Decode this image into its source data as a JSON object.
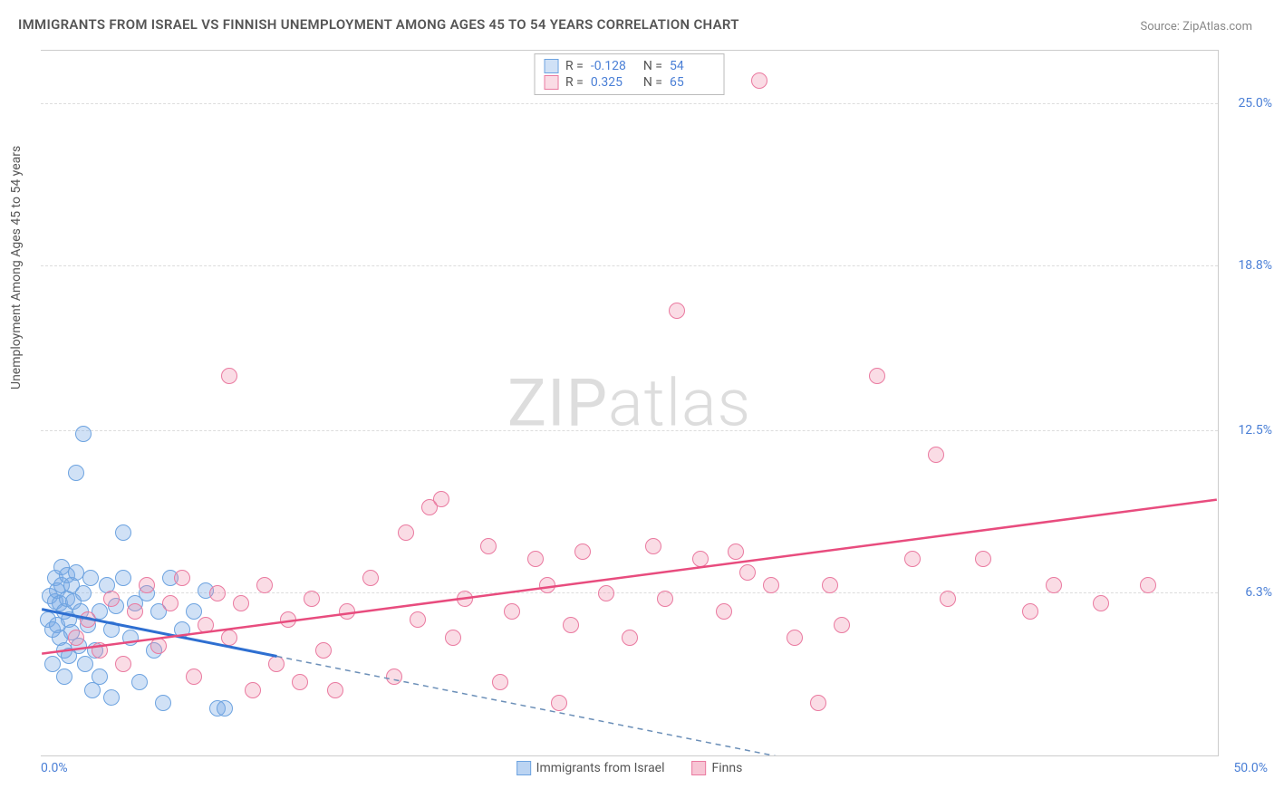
{
  "title": "IMMIGRANTS FROM ISRAEL VS FINNISH UNEMPLOYMENT AMONG AGES 45 TO 54 YEARS CORRELATION CHART",
  "source": "Source: ZipAtlas.com",
  "watermark_a": "ZIP",
  "watermark_b": "atlas",
  "chart": {
    "type": "scatter",
    "ylabel": "Unemployment Among Ages 45 to 54 years",
    "xlim": [
      0,
      50
    ],
    "ylim": [
      0,
      27
    ],
    "xtick_labels": {
      "min": "0.0%",
      "max": "50.0%"
    },
    "ytick_labels": [
      "6.3%",
      "12.5%",
      "18.8%",
      "25.0%"
    ],
    "ytick_values": [
      6.3,
      12.5,
      18.8,
      25.0
    ],
    "grid_color": "#dddddd",
    "border_color": "#cccccc",
    "background_color": "#ffffff",
    "tick_text_color": "#4a7fd6",
    "label_text_color": "#555555",
    "title_color": "#555555",
    "title_fontsize": 15,
    "label_fontsize": 14,
    "tick_fontsize": 14,
    "point_radius": 9,
    "series": [
      {
        "name": "Immigrants from Israel",
        "short": "israel",
        "fill": "rgba(120,170,230,0.35)",
        "stroke": "#6da3e0",
        "r_label": "R =",
        "r_value": "-0.128",
        "n_label": "N =",
        "n_value": "54",
        "trend": {
          "solid": {
            "x1": 0,
            "y1": 5.6,
            "x2": 10,
            "y2": 3.8
          },
          "dashed": {
            "x1": 10,
            "y1": 3.8,
            "x2": 35,
            "y2": -0.7
          },
          "solid_color": "#2e6fd1",
          "dash_color": "#6b8fb8",
          "solid_width": 3,
          "dash_width": 1.5
        },
        "points": [
          [
            0.3,
            5.2
          ],
          [
            0.4,
            6.1
          ],
          [
            0.5,
            4.8
          ],
          [
            0.6,
            5.9
          ],
          [
            0.6,
            6.8
          ],
          [
            0.7,
            5.0
          ],
          [
            0.7,
            6.3
          ],
          [
            0.8,
            4.5
          ],
          [
            0.8,
            5.8
          ],
          [
            0.9,
            6.5
          ],
          [
            0.9,
            7.2
          ],
          [
            1.0,
            4.0
          ],
          [
            1.0,
            5.5
          ],
          [
            1.1,
            6.0
          ],
          [
            1.1,
            6.9
          ],
          [
            1.2,
            3.8
          ],
          [
            1.2,
            5.2
          ],
          [
            1.3,
            6.5
          ],
          [
            1.3,
            4.7
          ],
          [
            1.4,
            5.9
          ],
          [
            1.5,
            7.0
          ],
          [
            1.5,
            10.8
          ],
          [
            1.6,
            4.2
          ],
          [
            1.7,
            5.5
          ],
          [
            1.8,
            6.2
          ],
          [
            1.8,
            12.3
          ],
          [
            1.9,
            3.5
          ],
          [
            2.0,
            5.0
          ],
          [
            2.1,
            6.8
          ],
          [
            2.2,
            2.5
          ],
          [
            2.3,
            4.0
          ],
          [
            2.5,
            5.5
          ],
          [
            2.5,
            3.0
          ],
          [
            2.8,
            6.5
          ],
          [
            3.0,
            4.8
          ],
          [
            3.0,
            2.2
          ],
          [
            3.2,
            5.7
          ],
          [
            3.5,
            6.8
          ],
          [
            3.5,
            8.5
          ],
          [
            3.8,
            4.5
          ],
          [
            4.0,
            5.8
          ],
          [
            4.2,
            2.8
          ],
          [
            4.5,
            6.2
          ],
          [
            4.8,
            4.0
          ],
          [
            5.0,
            5.5
          ],
          [
            5.2,
            2.0
          ],
          [
            5.5,
            6.8
          ],
          [
            6.0,
            4.8
          ],
          [
            6.5,
            5.5
          ],
          [
            7.0,
            6.3
          ],
          [
            7.5,
            1.8
          ],
          [
            7.8,
            1.8
          ],
          [
            1.0,
            3.0
          ],
          [
            0.5,
            3.5
          ]
        ]
      },
      {
        "name": "Finns",
        "short": "finns",
        "fill": "rgba(240,140,170,0.30)",
        "stroke": "#ea7aa0",
        "r_label": "R =",
        "r_value": "0.325",
        "n_label": "N =",
        "n_value": "65",
        "trend": {
          "solid": {
            "x1": 0,
            "y1": 3.9,
            "x2": 50,
            "y2": 9.8
          },
          "solid_color": "#e84c7e",
          "solid_width": 2.5
        },
        "points": [
          [
            1.5,
            4.5
          ],
          [
            2.0,
            5.2
          ],
          [
            2.5,
            4.0
          ],
          [
            3.0,
            6.0
          ],
          [
            3.5,
            3.5
          ],
          [
            4.0,
            5.5
          ],
          [
            4.5,
            6.5
          ],
          [
            5.0,
            4.2
          ],
          [
            5.5,
            5.8
          ],
          [
            6.0,
            6.8
          ],
          [
            6.5,
            3.0
          ],
          [
            7.0,
            5.0
          ],
          [
            7.5,
            6.2
          ],
          [
            8.0,
            4.5
          ],
          [
            8.0,
            14.5
          ],
          [
            8.5,
            5.8
          ],
          [
            9.0,
            2.5
          ],
          [
            9.5,
            6.5
          ],
          [
            10.0,
            3.5
          ],
          [
            10.5,
            5.2
          ],
          [
            11.0,
            2.8
          ],
          [
            11.5,
            6.0
          ],
          [
            12.0,
            4.0
          ],
          [
            12.5,
            2.5
          ],
          [
            13.0,
            5.5
          ],
          [
            14.0,
            6.8
          ],
          [
            15.0,
            3.0
          ],
          [
            15.5,
            8.5
          ],
          [
            16.0,
            5.2
          ],
          [
            16.5,
            9.5
          ],
          [
            17.0,
            9.8
          ],
          [
            17.5,
            4.5
          ],
          [
            18.0,
            6.0
          ],
          [
            19.0,
            8.0
          ],
          [
            19.5,
            2.8
          ],
          [
            20.0,
            5.5
          ],
          [
            21.0,
            7.5
          ],
          [
            21.5,
            6.5
          ],
          [
            22.0,
            2.0
          ],
          [
            22.5,
            5.0
          ],
          [
            23.0,
            7.8
          ],
          [
            24.0,
            6.2
          ],
          [
            25.0,
            4.5
          ],
          [
            26.0,
            8.0
          ],
          [
            26.5,
            6.0
          ],
          [
            27.0,
            17.0
          ],
          [
            28.0,
            7.5
          ],
          [
            29.0,
            5.5
          ],
          [
            29.5,
            7.8
          ],
          [
            30.0,
            7.0
          ],
          [
            30.5,
            25.8
          ],
          [
            31.0,
            6.5
          ],
          [
            32.0,
            4.5
          ],
          [
            33.0,
            2.0
          ],
          [
            33.5,
            6.5
          ],
          [
            34.0,
            5.0
          ],
          [
            35.5,
            14.5
          ],
          [
            37.0,
            7.5
          ],
          [
            38.0,
            11.5
          ],
          [
            38.5,
            6.0
          ],
          [
            40.0,
            7.5
          ],
          [
            42.0,
            5.5
          ],
          [
            43.0,
            6.5
          ],
          [
            45.0,
            5.8
          ],
          [
            47.0,
            6.5
          ]
        ]
      }
    ],
    "legend_bottom": [
      {
        "label": "Immigrants from Israel",
        "fill": "rgba(120,170,230,0.5)",
        "stroke": "#6da3e0"
      },
      {
        "label": "Finns",
        "fill": "rgba(240,140,170,0.5)",
        "stroke": "#ea7aa0"
      }
    ]
  }
}
